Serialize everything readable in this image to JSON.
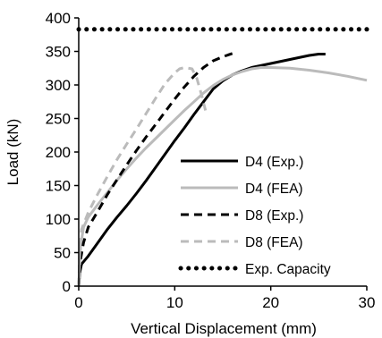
{
  "chart_data": {
    "type": "line",
    "xlabel": "Vertical Displacement (mm)",
    "ylabel": "Load (kN)",
    "xlim": [
      0,
      30
    ],
    "ylim": [
      0,
      400
    ],
    "x_ticks": [
      "0",
      "10",
      "20",
      "30"
    ],
    "y_ticks": [
      "0",
      "50",
      "100",
      "150",
      "200",
      "250",
      "300",
      "350",
      "400"
    ],
    "grid": false,
    "legend_position": "bottom-right",
    "series": [
      {
        "name": "D4 (Exp.)",
        "color": "#000000",
        "style": "solid",
        "points": [
          [
            0,
            0
          ],
          [
            0.1,
            20
          ],
          [
            0.3,
            33
          ],
          [
            1,
            45
          ],
          [
            2,
            65
          ],
          [
            3,
            85
          ],
          [
            4,
            103
          ],
          [
            5,
            120
          ],
          [
            6,
            138
          ],
          [
            7,
            157
          ],
          [
            8,
            177
          ],
          [
            9,
            197
          ],
          [
            10,
            217
          ],
          [
            11,
            236
          ],
          [
            12,
            256
          ],
          [
            13,
            275
          ],
          [
            14,
            294
          ],
          [
            15,
            306
          ],
          [
            16,
            315
          ],
          [
            17,
            321
          ],
          [
            18,
            326
          ],
          [
            20,
            332
          ],
          [
            22,
            338
          ],
          [
            24,
            344
          ],
          [
            25,
            346
          ],
          [
            25.7,
            346
          ]
        ]
      },
      {
        "name": "D4 (FEA)",
        "color": "#bbbbbb",
        "style": "solid",
        "points": [
          [
            0,
            0
          ],
          [
            0.2,
            60
          ],
          [
            0.5,
            88
          ],
          [
            1,
            103
          ],
          [
            2,
            122
          ],
          [
            3,
            140
          ],
          [
            4,
            158
          ],
          [
            5,
            175
          ],
          [
            6,
            191
          ],
          [
            7,
            206
          ],
          [
            8,
            220
          ],
          [
            9,
            234
          ],
          [
            10,
            248
          ],
          [
            11,
            262
          ],
          [
            12,
            275
          ],
          [
            13,
            288
          ],
          [
            14,
            299
          ],
          [
            15,
            308
          ],
          [
            16,
            315
          ],
          [
            17,
            320
          ],
          [
            18,
            324
          ],
          [
            19,
            326
          ],
          [
            20,
            326
          ],
          [
            22,
            325
          ],
          [
            24,
            322
          ],
          [
            26,
            318
          ],
          [
            28,
            313
          ],
          [
            30,
            307
          ]
        ]
      },
      {
        "name": "D8 (Exp.)",
        "color": "#000000",
        "style": "dashed",
        "points": [
          [
            0,
            0
          ],
          [
            0.2,
            40
          ],
          [
            0.5,
            65
          ],
          [
            1,
            88
          ],
          [
            2,
            112
          ],
          [
            3,
            137
          ],
          [
            4,
            159
          ],
          [
            5,
            181
          ],
          [
            6,
            202
          ],
          [
            7,
            222
          ],
          [
            8,
            241
          ],
          [
            9,
            260
          ],
          [
            10,
            279
          ],
          [
            11,
            297
          ],
          [
            12,
            313
          ],
          [
            13,
            326
          ],
          [
            14,
            336
          ],
          [
            15,
            342
          ],
          [
            16,
            347
          ]
        ]
      },
      {
        "name": "D8 (FEA)",
        "color": "#bbbbbb",
        "style": "dashed",
        "points": [
          [
            0,
            0
          ],
          [
            0.1,
            50
          ],
          [
            0.3,
            85
          ],
          [
            1,
            110
          ],
          [
            2,
            138
          ],
          [
            3,
            164
          ],
          [
            4,
            189
          ],
          [
            5,
            212
          ],
          [
            6,
            234
          ],
          [
            7,
            257
          ],
          [
            8,
            280
          ],
          [
            9,
            302
          ],
          [
            10,
            318
          ],
          [
            10.5,
            324
          ],
          [
            11,
            326
          ],
          [
            11.8,
            324
          ],
          [
            12.3,
            310
          ],
          [
            12.8,
            285
          ],
          [
            13.2,
            262
          ]
        ]
      },
      {
        "name": "Exp. Capacity",
        "color": "#000000",
        "style": "dotted",
        "points": [
          [
            0,
            383
          ],
          [
            30,
            383
          ]
        ]
      }
    ]
  }
}
